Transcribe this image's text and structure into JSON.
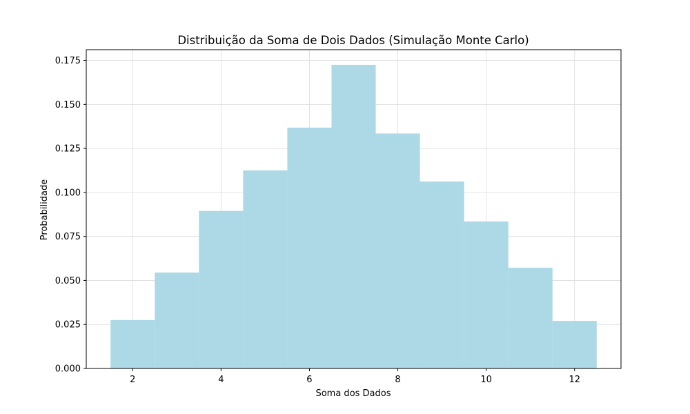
{
  "chart_data": {
    "type": "bar",
    "title": "Distribuição da Soma de Dois Dados (Simulação Monte Carlo)",
    "xlabel": "Soma dos Dados",
    "ylabel": "Probabilidade",
    "bins": [
      {
        "start": 1.5,
        "end": 2.5,
        "value": 0.0275
      },
      {
        "start": 2.5,
        "end": 3.5,
        "value": 0.0545
      },
      {
        "start": 3.5,
        "end": 4.5,
        "value": 0.0895
      },
      {
        "start": 4.5,
        "end": 5.5,
        "value": 0.1125
      },
      {
        "start": 5.5,
        "end": 6.5,
        "value": 0.1368
      },
      {
        "start": 6.5,
        "end": 7.5,
        "value": 0.1725
      },
      {
        "start": 7.5,
        "end": 8.5,
        "value": 0.1335
      },
      {
        "start": 8.5,
        "end": 9.5,
        "value": 0.1062
      },
      {
        "start": 9.5,
        "end": 10.5,
        "value": 0.0835
      },
      {
        "start": 10.5,
        "end": 11.5,
        "value": 0.0572
      },
      {
        "start": 11.5,
        "end": 12.5,
        "value": 0.027
      }
    ],
    "xlim": [
      0.95,
      13.05
    ],
    "ylim": [
      0,
      0.1811
    ],
    "xticks": [
      2,
      4,
      6,
      8,
      10,
      12
    ],
    "xtick_labels": [
      "2",
      "4",
      "6",
      "8",
      "10",
      "12"
    ],
    "yticks": [
      0,
      0.025,
      0.05,
      0.075,
      0.1,
      0.125,
      0.15,
      0.175
    ],
    "ytick_labels": [
      "0.000",
      "0.025",
      "0.050",
      "0.075",
      "0.100",
      "0.125",
      "0.150",
      "0.175"
    ],
    "grid": true,
    "bar_color": "#add8e6"
  }
}
